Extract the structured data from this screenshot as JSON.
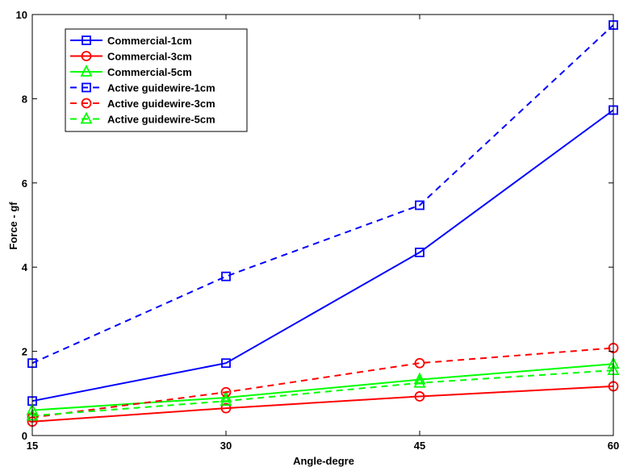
{
  "chart_data": {
    "type": "line",
    "title": "",
    "xlabel": "Angle-degre",
    "ylabel": "Force - gf",
    "x": [
      15,
      30,
      45,
      60
    ],
    "xticks": [
      "15",
      "30",
      "45",
      "60"
    ],
    "yticks": [
      "0",
      "2",
      "4",
      "6",
      "8",
      "10"
    ],
    "xlim": [
      15,
      60
    ],
    "ylim": [
      0,
      10
    ],
    "grid": false,
    "legend_position": "top-left",
    "series": [
      {
        "name": "Commercial-1cm",
        "values": [
          0.82,
          1.72,
          4.35,
          7.73
        ],
        "color": "#0000ff",
        "dash": "solid",
        "marker": "square"
      },
      {
        "name": "Commercial-3cm",
        "values": [
          0.33,
          0.65,
          0.93,
          1.17
        ],
        "color": "#ff0000",
        "dash": "solid",
        "marker": "circle"
      },
      {
        "name": "Commercial-5cm",
        "values": [
          0.6,
          0.9,
          1.33,
          1.7
        ],
        "color": "#00ff00",
        "dash": "solid",
        "marker": "triangle"
      },
      {
        "name": "Active guidewire-1cm",
        "values": [
          1.72,
          3.78,
          5.47,
          9.75
        ],
        "color": "#0000ff",
        "dash": "dashed",
        "marker": "square"
      },
      {
        "name": "Active guidewire-3cm",
        "values": [
          0.43,
          1.03,
          1.72,
          2.08
        ],
        "color": "#ff0000",
        "dash": "dashed",
        "marker": "circle"
      },
      {
        "name": "Active guidewire-5cm",
        "values": [
          0.47,
          0.82,
          1.25,
          1.55
        ],
        "color": "#00ff00",
        "dash": "dashed",
        "marker": "triangle"
      }
    ]
  }
}
